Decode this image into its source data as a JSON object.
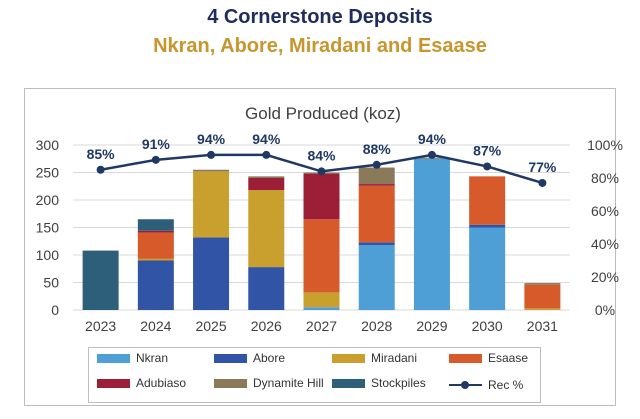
{
  "header": {
    "title_line1": "4 Cornerstone Deposits",
    "title_line2": "Nkran, Abore, Miradani and Esaase"
  },
  "chart_data": {
    "type": "bar",
    "stacked": true,
    "title": "Gold Produced (koz)",
    "categories": [
      "2023",
      "2024",
      "2025",
      "2026",
      "2027",
      "2028",
      "2029",
      "2030",
      "2031"
    ],
    "ylim": [
      0,
      300
    ],
    "y_ticks": [
      0,
      50,
      100,
      150,
      200,
      250,
      300
    ],
    "y2lim": [
      0,
      100
    ],
    "y2_ticks": [
      "0%",
      "20%",
      "40%",
      "60%",
      "80%",
      "100%"
    ],
    "series": [
      {
        "name": "Nkran",
        "color": "#4e9fd6",
        "values": [
          0,
          0,
          0,
          0,
          5,
          118,
          275,
          150,
          0
        ]
      },
      {
        "name": "Abore",
        "color": "#3254a7",
        "values": [
          0,
          90,
          132,
          78,
          0,
          5,
          0,
          5,
          0
        ]
      },
      {
        "name": "Miradani",
        "color": "#c9a02e",
        "values": [
          0,
          3,
          120,
          140,
          27,
          0,
          0,
          0,
          3
        ]
      },
      {
        "name": "Esaase",
        "color": "#d65a2a",
        "values": [
          0,
          48,
          0,
          0,
          133,
          103,
          0,
          88,
          43
        ]
      },
      {
        "name": "Adubiaso",
        "color": "#9c1f37",
        "values": [
          0,
          3,
          0,
          22,
          83,
          3,
          0,
          0,
          0
        ]
      },
      {
        "name": "Dynamite Hill",
        "color": "#8a7a5a",
        "values": [
          0,
          0,
          3,
          3,
          2,
          30,
          2,
          0,
          3
        ]
      },
      {
        "name": "Stockpiles",
        "color": "#2d5f7a",
        "values": [
          108,
          21,
          0,
          0,
          0,
          0,
          0,
          0,
          0
        ]
      }
    ],
    "line_series": {
      "name": "Rec %",
      "color": "#1f3864",
      "axis": "secondary",
      "values": [
        85,
        91,
        94,
        94,
        84,
        88,
        94,
        87,
        77
      ],
      "labels": [
        "85%",
        "91%",
        "94%",
        "94%",
        "84%",
        "88%",
        "94%",
        "87%",
        "77%"
      ]
    },
    "legend": [
      "Nkran",
      "Abore",
      "Miradani",
      "Esaase",
      "Adubiaso",
      "Dynamite Hill",
      "Stockpiles",
      "Rec %"
    ],
    "legend_position": "bottom"
  }
}
